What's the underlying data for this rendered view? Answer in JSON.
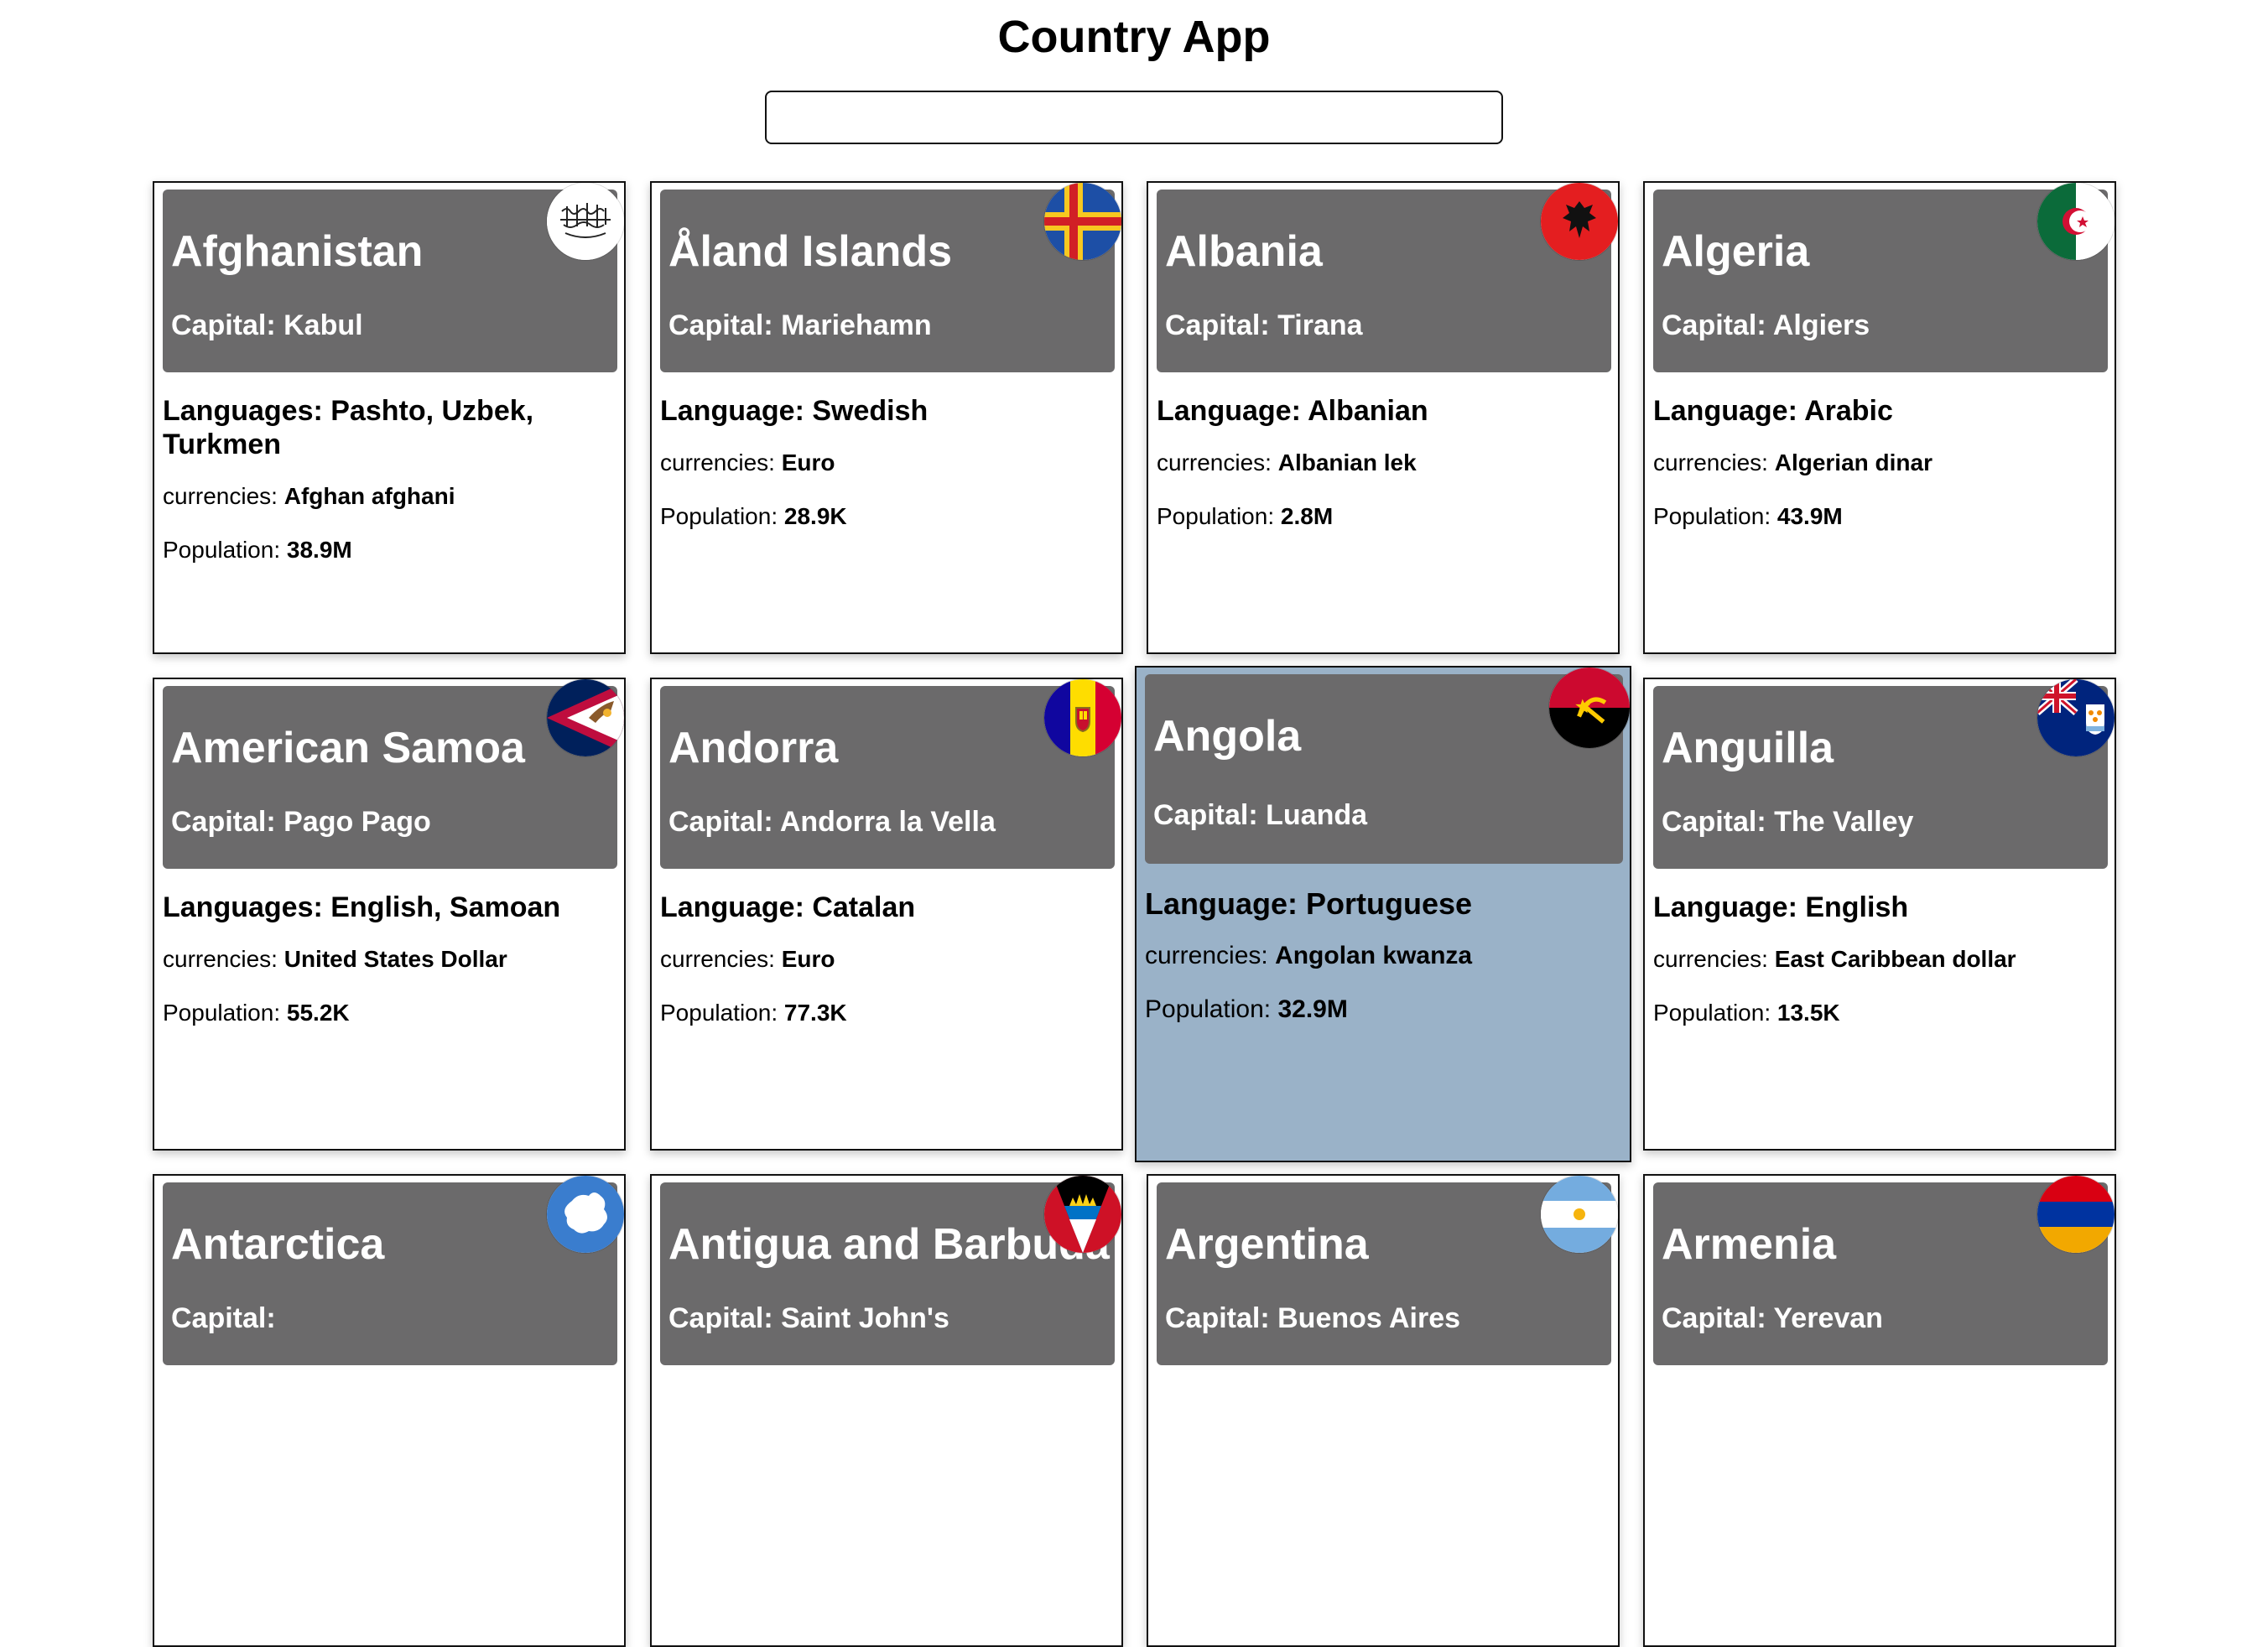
{
  "app": {
    "title": "Country App"
  },
  "search": {
    "value": "",
    "placeholder": ""
  },
  "countries": [
    {
      "name": "Afghanistan",
      "capital": "Capital: Kabul",
      "languages": "Languages: Pashto, Uzbek, Turkmen",
      "currencies_label": "currencies:",
      "currencies": "Afghan afghani",
      "population_label": "Population:",
      "population": "38.9M",
      "flag_icon": "afghanistan-flag-icon"
    },
    {
      "name": "Åland Islands",
      "capital": "Capital: Mariehamn",
      "languages": "Language: Swedish",
      "currencies_label": "currencies:",
      "currencies": "Euro",
      "population_label": "Population:",
      "population": "28.9K",
      "flag_icon": "aland-islands-flag-icon"
    },
    {
      "name": "Albania",
      "capital": "Capital: Tirana",
      "languages": "Language: Albanian",
      "currencies_label": "currencies:",
      "currencies": "Albanian lek",
      "population_label": "Population:",
      "population": "2.8M",
      "flag_icon": "albania-flag-icon"
    },
    {
      "name": "Algeria",
      "capital": "Capital: Algiers",
      "languages": "Language: Arabic",
      "currencies_label": "currencies:",
      "currencies": "Algerian dinar",
      "population_label": "Population:",
      "population": "43.9M",
      "flag_icon": "algeria-flag-icon"
    },
    {
      "name": "American Samoa",
      "capital": "Capital: Pago Pago",
      "languages": "Languages: English, Samoan",
      "currencies_label": "currencies:",
      "currencies": "United States Dollar",
      "population_label": "Population:",
      "population": "55.2K",
      "flag_icon": "american-samoa-flag-icon"
    },
    {
      "name": "Andorra",
      "capital": "Capital: Andorra la Vella",
      "languages": "Language: Catalan",
      "currencies_label": "currencies:",
      "currencies": "Euro",
      "population_label": "Population:",
      "population": "77.3K",
      "flag_icon": "andorra-flag-icon"
    },
    {
      "name": "Angola",
      "capital": "Capital: Luanda",
      "languages": "Language: Portuguese",
      "currencies_label": "currencies:",
      "currencies": "Angolan kwanza",
      "population_label": "Population:",
      "population": "32.9M",
      "flag_icon": "angola-flag-icon",
      "hovered": true
    },
    {
      "name": "Anguilla",
      "capital": "Capital: The Valley",
      "languages": "Language: English",
      "currencies_label": "currencies:",
      "currencies": "East Caribbean dollar",
      "population_label": "Population:",
      "population": "13.5K",
      "flag_icon": "anguilla-flag-icon"
    },
    {
      "name": "Antarctica",
      "capital": "Capital:",
      "flag_icon": "antarctica-flag-icon"
    },
    {
      "name": "Antigua and Barbuda",
      "capital": "Capital: Saint John's",
      "flag_icon": "antigua-and-barbuda-flag-icon"
    },
    {
      "name": "Argentina",
      "capital": "Capital: Buenos Aires",
      "flag_icon": "argentina-flag-icon"
    },
    {
      "name": "Armenia",
      "capital": "Capital: Yerevan",
      "flag_icon": "armenia-flag-icon"
    }
  ],
  "colors": {
    "card_header": "#6b6a6b",
    "card_hover": "#9ab2c8"
  }
}
